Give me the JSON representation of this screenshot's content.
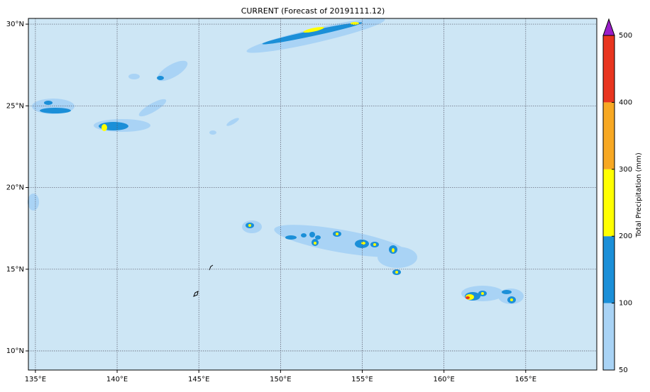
{
  "map": {
    "title": "CURRENT (Forecast of 20191111.12)",
    "xlim": [
      134.57,
      169.35
    ],
    "ylim": [
      8.83,
      30.35
    ],
    "xticks": [
      {
        "value": 135,
        "label": "135°E"
      },
      {
        "value": 140,
        "label": "140°E"
      },
      {
        "value": 145,
        "label": "145°E"
      },
      {
        "value": 150,
        "label": "150°E"
      },
      {
        "value": 155,
        "label": "155°E"
      },
      {
        "value": 160,
        "label": "160°E"
      },
      {
        "value": 165,
        "label": "165°E"
      }
    ],
    "yticks": [
      {
        "value": 10,
        "label": "10°N"
      },
      {
        "value": 15,
        "label": "15°N"
      },
      {
        "value": 20,
        "label": "20°N"
      },
      {
        "value": 25,
        "label": "25°N"
      },
      {
        "value": 30,
        "label": "30°N"
      }
    ],
    "grid": true
  },
  "colorbar": {
    "label": "Total Precipitation (mm)",
    "ticks": [
      50,
      100,
      200,
      300,
      400,
      500
    ],
    "colors": [
      "#a9d3f5",
      "#1b8fd8",
      "#ffff00",
      "#f7a823",
      "#e8351f"
    ],
    "extend_color": "#9a1dc8"
  }
}
